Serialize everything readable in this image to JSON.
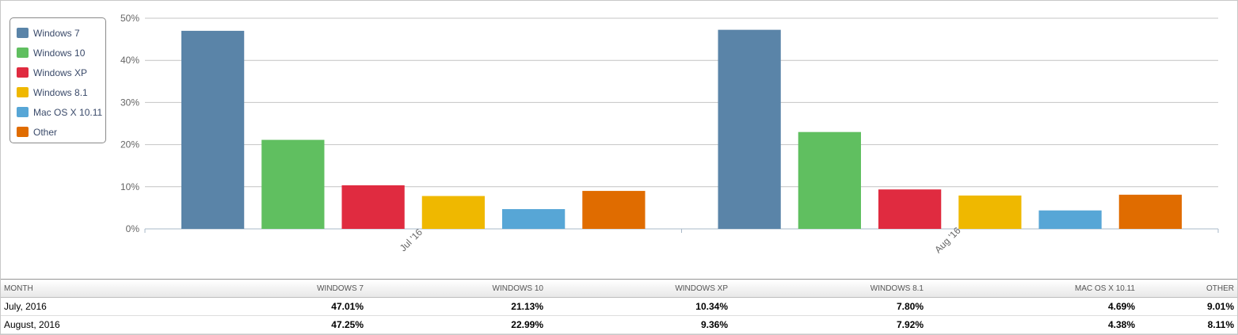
{
  "chart_data": {
    "type": "bar",
    "categories": [
      "Jul '16",
      "Aug '16"
    ],
    "series": [
      {
        "name": "Windows 7",
        "color": "#5a84a8",
        "values": [
          47.01,
          47.25
        ]
      },
      {
        "name": "Windows 10",
        "color": "#60bf60",
        "values": [
          21.13,
          22.99
        ]
      },
      {
        "name": "Windows XP",
        "color": "#e02b40",
        "values": [
          10.34,
          9.36
        ]
      },
      {
        "name": "Windows 8.1",
        "color": "#efb800",
        "values": [
          7.8,
          7.92
        ]
      },
      {
        "name": "Mac OS X 10.11",
        "color": "#57a6d6",
        "values": [
          4.69,
          4.38
        ]
      },
      {
        "name": "Other",
        "color": "#e06c00",
        "values": [
          9.01,
          8.11
        ]
      }
    ],
    "yticks": [
      "0%",
      "10%",
      "20%",
      "30%",
      "40%",
      "50%"
    ],
    "ylim": [
      0,
      50
    ],
    "grid": true,
    "legend": "top-left"
  },
  "table": {
    "headers": [
      "MONTH",
      "WINDOWS 7",
      "WINDOWS 10",
      "WINDOWS XP",
      "WINDOWS 8.1",
      "MAC OS X 10.11",
      "OTHER"
    ],
    "rows": [
      {
        "month": "July, 2016",
        "values": [
          "47.01%",
          "21.13%",
          "10.34%",
          "7.80%",
          "4.69%",
          "9.01%"
        ]
      },
      {
        "month": "August, 2016",
        "values": [
          "47.25%",
          "22.99%",
          "9.36%",
          "7.92%",
          "4.38%",
          "8.11%"
        ]
      }
    ]
  }
}
